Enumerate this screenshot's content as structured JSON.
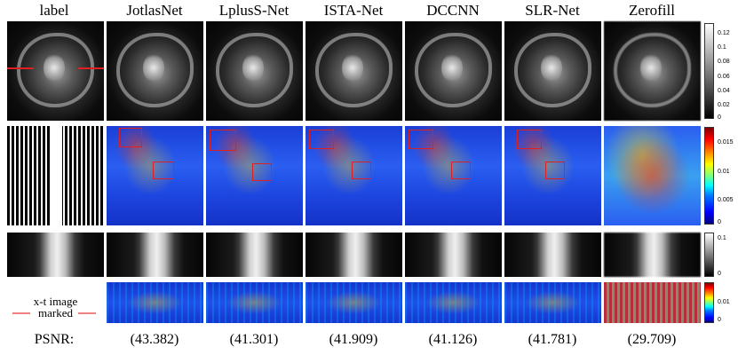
{
  "columns": [
    "label",
    "JotlasNet",
    "LplusS-Net",
    "ISTA-Net",
    "DCCNN",
    "SLR-Net",
    "Zerofill"
  ],
  "psnr_label": "PSNR:",
  "psnr_values": [
    "(43.382)",
    "(41.301)",
    "(41.909)",
    "(41.126)",
    "(41.781)",
    "(29.709)"
  ],
  "xt_caption": {
    "line1": "x-t image",
    "line2": "marked"
  },
  "colorbars": {
    "row1_ticks": [
      "0.12",
      "0.1",
      "0.08",
      "0.06",
      "0.04",
      "0.02",
      "0"
    ],
    "row2_ticks": [
      "0.015",
      "0.01",
      "0.005",
      "0"
    ],
    "row3_ticks": [
      "0.1",
      "0"
    ],
    "row4_ticks": [
      "0.01",
      "0"
    ]
  },
  "colors": {
    "highlight_box": "#e02020",
    "marker_line": "#f08080"
  }
}
